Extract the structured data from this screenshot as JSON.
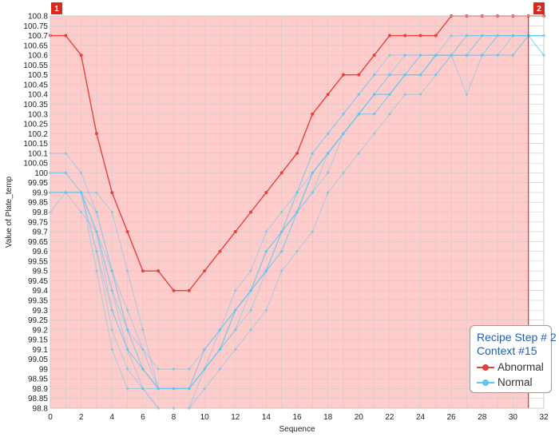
{
  "legend": {
    "title_line1": "Recipe Step # 2",
    "title_line2": "Context #15",
    "items": [
      {
        "label": "Abnormal",
        "color": "#e8413c"
      },
      {
        "label": "Normal",
        "color": "#5bc6f2"
      }
    ]
  },
  "markers": {
    "start": "1",
    "end": "2"
  },
  "chart_data": {
    "type": "line",
    "xlabel": "Sequence",
    "ylabel": "Value of Plate_temp",
    "xlim": [
      0,
      32
    ],
    "ylim": [
      98.8,
      100.8
    ],
    "x_ticks": [
      0,
      2,
      4,
      6,
      8,
      10,
      12,
      14,
      16,
      18,
      20,
      22,
      24,
      26,
      28,
      30,
      32
    ],
    "y_ticks": [
      98.8,
      98.85,
      98.9,
      98.95,
      99,
      99.05,
      99.1,
      99.15,
      99.2,
      99.25,
      99.3,
      99.35,
      99.4,
      99.45,
      99.5,
      99.55,
      99.6,
      99.65,
      99.7,
      99.75,
      99.8,
      99.85,
      99.9,
      99.95,
      100,
      100.05,
      100.1,
      100.15,
      100.2,
      100.25,
      100.3,
      100.35,
      100.4,
      100.45,
      100.5,
      100.55,
      100.6,
      100.65,
      100.7,
      100.75,
      100.8
    ],
    "y_tick_labels": [
      "98.8",
      "98.85",
      "98.9",
      "98.95",
      "99",
      "99.05",
      "99.1",
      "99.15",
      "99.2",
      "99.25",
      "99.3",
      "99.35",
      "99.4",
      "99.45",
      "99.5",
      "99.55",
      "99.6",
      "99.65",
      "99.7",
      "99.75",
      "99.8",
      "99.85",
      "99.9",
      "99.95",
      "100",
      "100.05",
      "100.1",
      "100.15",
      "100.2",
      "100.25",
      "100.3",
      "100.35",
      "100.4",
      "100.45",
      "100.5",
      "100.55",
      "100.6",
      "100.65",
      "100.7",
      "100.75",
      "100.8"
    ],
    "x": [
      0,
      1,
      2,
      3,
      4,
      5,
      6,
      7,
      8,
      9,
      10,
      11,
      12,
      13,
      14,
      15,
      16,
      17,
      18,
      19,
      20,
      21,
      22,
      23,
      24,
      25,
      26,
      27,
      28,
      29,
      30,
      31,
      32
    ],
    "grid": true,
    "shaded_region": {
      "x": [
        0,
        31
      ],
      "color": "#ffcccc"
    },
    "vertical_marker_x": 31,
    "series": [
      {
        "group": "Abnormal",
        "color": "#e8413c",
        "values": [
          100.7,
          100.7,
          100.6,
          100.2,
          99.9,
          99.7,
          99.5,
          99.5,
          99.4,
          99.4,
          99.5,
          99.6,
          99.7,
          99.8,
          99.9,
          100.0,
          100.1,
          100.3,
          100.4,
          100.5,
          100.5,
          100.6,
          100.7,
          100.7,
          100.7,
          100.7,
          100.8,
          100.8,
          100.8,
          100.8,
          100.8,
          100.8,
          100.8
        ]
      },
      {
        "group": "Normal",
        "color": "#5bc6f2",
        "values": [
          100.0,
          100.0,
          99.9,
          99.7,
          99.4,
          99.2,
          99.0,
          98.9,
          98.9,
          98.9,
          99.0,
          99.1,
          99.2,
          99.3,
          99.5,
          99.6,
          99.8,
          100.0,
          100.1,
          100.2,
          100.3,
          100.4,
          100.5,
          100.5,
          100.5,
          100.6,
          100.6,
          100.6,
          100.6,
          100.7,
          100.7,
          100.7,
          100.7
        ]
      },
      {
        "group": "Normal",
        "color": "#5bc6f2",
        "values": [
          99.9,
          99.9,
          99.9,
          99.8,
          99.5,
          99.2,
          99.1,
          99.0,
          99.0,
          99.0,
          99.1,
          99.2,
          99.3,
          99.4,
          99.6,
          99.7,
          99.8,
          100.0,
          100.1,
          100.2,
          100.3,
          100.4,
          100.4,
          100.5,
          100.5,
          100.6,
          100.6,
          100.6,
          100.6,
          100.6,
          100.7,
          100.7,
          100.7
        ]
      },
      {
        "group": "Normal",
        "color": "#5bc6f2",
        "values": [
          99.9,
          99.9,
          99.9,
          99.7,
          99.4,
          99.1,
          98.9,
          98.9,
          98.9,
          98.9,
          99.0,
          99.1,
          99.3,
          99.4,
          99.5,
          99.7,
          99.8,
          99.9,
          100.0,
          100.2,
          100.3,
          100.3,
          100.4,
          100.5,
          100.5,
          100.5,
          100.6,
          100.6,
          100.7,
          100.7,
          100.7,
          100.7,
          100.7
        ]
      },
      {
        "group": "Normal",
        "color": "#5bc6f2",
        "values": [
          100.1,
          100.1,
          100.0,
          99.8,
          99.5,
          99.3,
          99.1,
          98.9,
          98.9,
          98.9,
          99.0,
          99.1,
          99.2,
          99.4,
          99.5,
          99.7,
          99.9,
          100.1,
          100.2,
          100.3,
          100.4,
          100.5,
          100.5,
          100.6,
          100.6,
          100.6,
          100.7,
          100.7,
          100.7,
          100.7,
          100.7,
          100.7,
          100.7
        ]
      },
      {
        "group": "Normal",
        "color": "#5bc6f2",
        "values": [
          99.8,
          99.9,
          99.9,
          99.6,
          99.3,
          99.1,
          99.0,
          98.9,
          98.9,
          98.9,
          99.1,
          99.2,
          99.3,
          99.4,
          99.6,
          99.7,
          99.8,
          100.0,
          100.1,
          100.2,
          100.3,
          100.4,
          100.4,
          100.5,
          100.5,
          100.6,
          100.6,
          100.6,
          100.6,
          100.7,
          100.7,
          100.7,
          100.6
        ]
      },
      {
        "group": "Normal",
        "color": "#5bc6f2",
        "values": [
          99.9,
          99.9,
          99.9,
          99.6,
          99.2,
          99.0,
          98.9,
          98.8,
          98.8,
          98.8,
          98.9,
          99.0,
          99.1,
          99.2,
          99.3,
          99.5,
          99.6,
          99.7,
          99.9,
          100.0,
          100.1,
          100.2,
          100.3,
          100.4,
          100.4,
          100.5,
          100.6,
          100.6,
          100.6,
          100.6,
          100.6,
          100.7,
          100.7
        ]
      },
      {
        "group": "Normal",
        "color": "#5bc6f2",
        "values": [
          100.0,
          100.0,
          99.9,
          99.5,
          99.1,
          98.9,
          98.9,
          98.8,
          98.8,
          98.8,
          99.0,
          99.1,
          99.3,
          99.4,
          99.5,
          99.7,
          99.8,
          100.0,
          100.1,
          100.2,
          100.3,
          100.4,
          100.5,
          100.5,
          100.6,
          100.6,
          100.6,
          100.7,
          100.7,
          100.7,
          100.7,
          100.7,
          100.7
        ]
      },
      {
        "group": "Normal",
        "color": "#5bc6f2",
        "values": [
          99.9,
          99.9,
          99.8,
          99.7,
          99.3,
          99.1,
          99.0,
          98.9,
          98.9,
          98.9,
          99.0,
          99.2,
          99.3,
          99.4,
          99.6,
          99.7,
          99.9,
          100.0,
          100.1,
          100.2,
          100.3,
          100.3,
          100.4,
          100.5,
          100.5,
          100.6,
          100.6,
          100.4,
          100.6,
          100.6,
          100.6,
          100.7,
          100.6
        ]
      },
      {
        "group": "Normal",
        "color": "#5bc6f2",
        "values": [
          99.9,
          99.9,
          99.9,
          99.7,
          99.5,
          99.2,
          99.0,
          98.9,
          98.9,
          98.9,
          99.0,
          99.1,
          99.3,
          99.4,
          99.5,
          99.6,
          99.8,
          99.9,
          100.1,
          100.2,
          100.3,
          100.4,
          100.4,
          100.5,
          100.6,
          100.6,
          100.6,
          100.6,
          100.7,
          100.7,
          100.7,
          100.7,
          100.7
        ]
      },
      {
        "group": "Normal",
        "color": "#5bc6f2",
        "values": [
          99.9,
          99.9,
          99.9,
          99.9,
          99.8,
          99.5,
          99.2,
          98.9,
          98.9,
          98.9,
          99.1,
          99.2,
          99.4,
          99.5,
          99.7,
          99.8,
          99.9,
          100.1,
          100.2,
          100.3,
          100.4,
          100.5,
          100.6,
          100.6,
          100.6,
          100.6,
          100.6,
          100.7,
          100.7,
          100.7,
          100.7,
          100.7,
          100.7
        ]
      }
    ]
  }
}
